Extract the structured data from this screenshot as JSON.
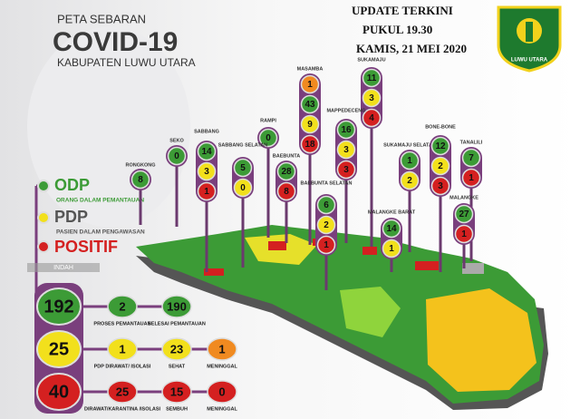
{
  "header": {
    "title_top": "PETA SEBARAN",
    "title_main": "COVID-19",
    "subtitle": "KABUPATEN LUWU UTARA"
  },
  "update": {
    "line1": "UPDATE TERKINI",
    "line2": "PUKUL 19.30",
    "line3": "KAMIS, 21 MEI 2020"
  },
  "logo": {
    "text": "LUWU UTARA"
  },
  "legend": {
    "odp": "ODP",
    "odp_desc": "ORANG DALAM PEMANTAUAN",
    "pdp": "PDP",
    "pdp_desc": "PASIEN DALAM PENGAWASAN",
    "positif": "POSITIF",
    "tag": "INDAH"
  },
  "districts": [
    {
      "name": "RONGKONG",
      "odp": 8
    },
    {
      "name": "SEKO",
      "odp": 0
    },
    {
      "name": "SABBANG",
      "odp": 14,
      "pdp": 3,
      "positif": 1
    },
    {
      "name": "RAMPI",
      "odp": 0
    },
    {
      "name": "SABBANG SELATAN",
      "odp": 5,
      "pdp": 0
    },
    {
      "name": "BAEBUNTA",
      "odp": 28,
      "positif": 8
    },
    {
      "name": "MASAMBA",
      "meninggal": 1,
      "odp": 43,
      "pdp": 9,
      "positif": 18
    },
    {
      "name": "SUKAMAJU",
      "odp": 11,
      "pdp": 3,
      "positif": 4
    },
    {
      "name": "MAPPEDECENG",
      "odp": 16,
      "pdp": 3,
      "positif": 3
    },
    {
      "name": "BAEBUNTA SELATAN",
      "odp": 6,
      "pdp": 2,
      "positif": 1
    },
    {
      "name": "SUKAMAJU SELATAN",
      "odp": 1,
      "pdp": 2
    },
    {
      "name": "BONE-BONE",
      "odp": 12,
      "pdp": 2,
      "positif": 3
    },
    {
      "name": "TANALILI",
      "odp": 7,
      "positif": 1
    },
    {
      "name": "MALANGKE BARAT",
      "odp": 14,
      "pdp": 1
    },
    {
      "name": "MALANGKE",
      "odp": 27,
      "positif": 1
    }
  ],
  "summary": [
    {
      "total": 192,
      "items": [
        {
          "value": 2,
          "label": "PROSES PEMANTAUAN"
        },
        {
          "value": 190,
          "label": "SELESAI PEMANTAUAN"
        }
      ]
    },
    {
      "total": 25,
      "items": [
        {
          "value": 1,
          "label": "PDP DIRAWAT/ ISOLASI"
        },
        {
          "value": 23,
          "label": "SEHAT"
        },
        {
          "value": 1,
          "label": "MENINGGAL"
        }
      ]
    },
    {
      "total": 40,
      "items": [
        {
          "value": 25,
          "label": "DIRAWAT/KARANTINA /ISOLASI"
        },
        {
          "value": 15,
          "label": "SEMBUH"
        },
        {
          "value": 0,
          "label": "MENINGGAL"
        }
      ]
    }
  ]
}
